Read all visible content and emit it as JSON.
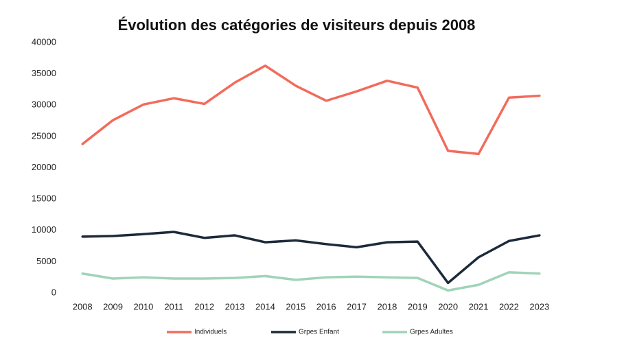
{
  "chart_data": {
    "type": "line",
    "title": "Évolution des catégories de visiteurs depuis 2008",
    "categories": [
      "2008",
      "2009",
      "2010",
      "2011",
      "2012",
      "2013",
      "2014",
      "2015",
      "2016",
      "2017",
      "2018",
      "2019",
      "2020",
      "2021",
      "2022",
      "2023"
    ],
    "series": [
      {
        "name": "Individuels",
        "color": "#f26b5b",
        "values": [
          23800,
          27600,
          30100,
          31100,
          30200,
          33600,
          36300,
          33100,
          30700,
          32200,
          33900,
          32800,
          22700,
          22200,
          31200,
          31500
        ]
      },
      {
        "name": "Grpes Enfant",
        "color": "#1c2a3a",
        "values": [
          9000,
          9100,
          9400,
          9750,
          8800,
          9200,
          8100,
          8400,
          7800,
          7300,
          8100,
          8200,
          1600,
          5700,
          8300,
          9200
        ]
      },
      {
        "name": "Grpes Adultes",
        "color": "#9fd4b8",
        "values": [
          3100,
          2300,
          2500,
          2300,
          2300,
          2400,
          2700,
          2100,
          2500,
          2600,
          2500,
          2400,
          400,
          1300,
          3300,
          3100
        ]
      }
    ],
    "ylim": [
      0,
      40000
    ],
    "yticks": [
      0,
      5000,
      10000,
      15000,
      20000,
      25000,
      30000,
      35000,
      40000
    ],
    "grid": false,
    "legend": "bottom"
  }
}
